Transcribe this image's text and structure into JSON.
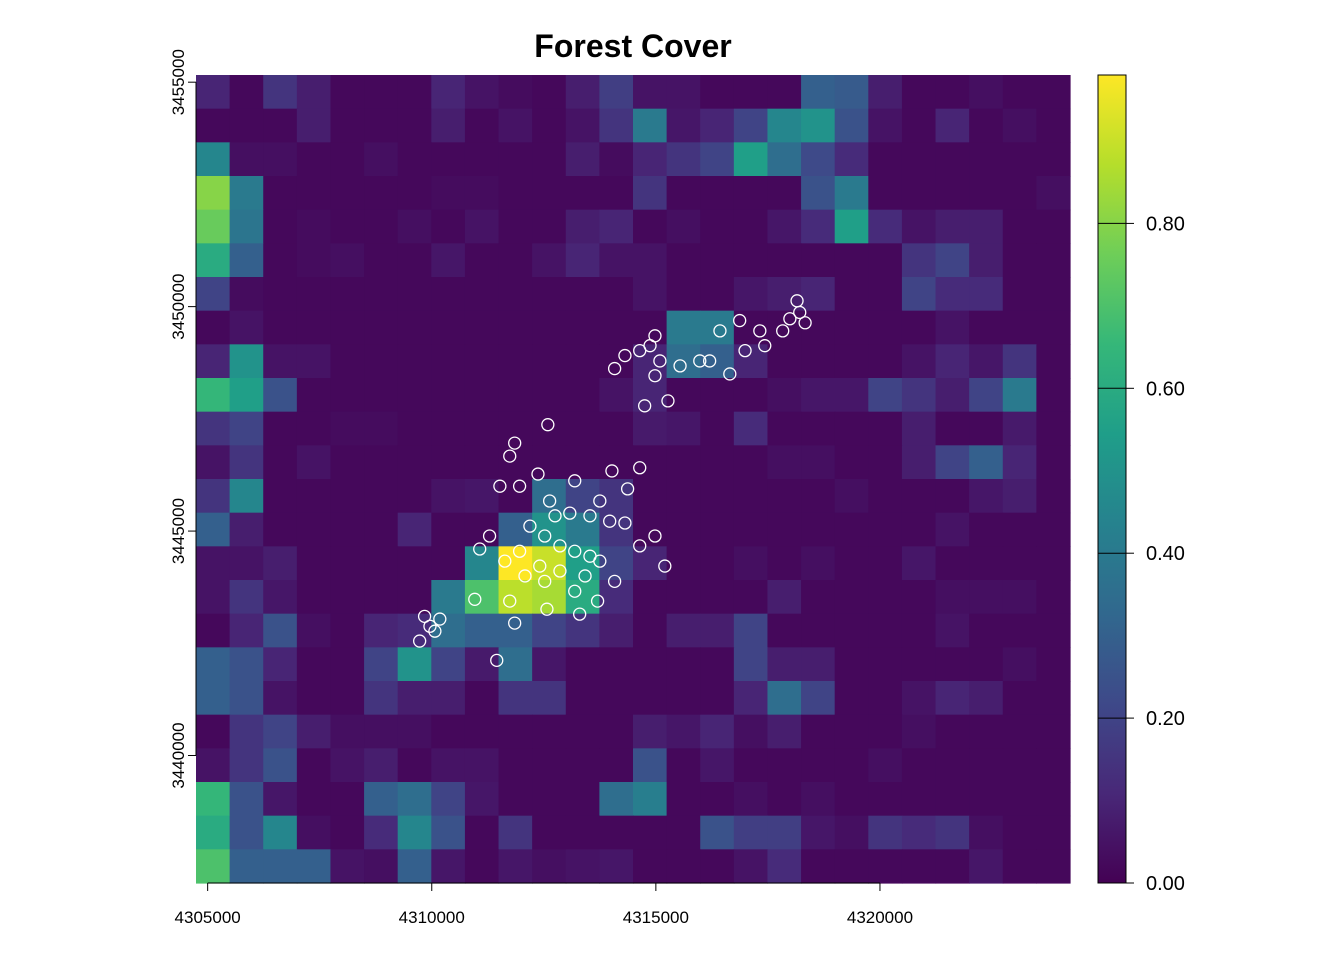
{
  "chart_data": {
    "type": "heatmap",
    "title": "Forest Cover",
    "colormap": "viridis",
    "xlim": [
      4304740,
      4324240
    ],
    "ylim": [
      3437160,
      3455160
    ],
    "xticks": [
      4305000,
      4310000,
      4315000,
      4320000
    ],
    "yticks": [
      3440000,
      3445000,
      3450000,
      3455000
    ],
    "zlim": [
      0,
      0.98
    ],
    "zticks": [
      {
        "value": 0,
        "label": "0.00"
      },
      {
        "value": 0.2,
        "label": "0.20"
      },
      {
        "value": 0.4,
        "label": "0.40"
      },
      {
        "value": 0.6,
        "label": "0.60"
      },
      {
        "value": 0.8,
        "label": "0.80"
      }
    ],
    "z": [
      [
        0.1,
        0.02,
        0.15,
        0.08,
        0.02,
        0.02,
        0.02,
        0.1,
        0.05,
        0.03,
        0.02,
        0.08,
        0.18,
        0.05,
        0.05,
        0.02,
        0.02,
        0.02,
        0.3,
        0.28,
        0.08,
        0.02,
        0.02,
        0.04,
        0.02,
        0.02
      ],
      [
        0.02,
        0.02,
        0.02,
        0.08,
        0.02,
        0.02,
        0.02,
        0.08,
        0.02,
        0.05,
        0.02,
        0.05,
        0.15,
        0.4,
        0.06,
        0.1,
        0.2,
        0.45,
        0.5,
        0.25,
        0.05,
        0.02,
        0.1,
        0.02,
        0.04,
        0.02
      ],
      [
        0.45,
        0.04,
        0.04,
        0.02,
        0.02,
        0.04,
        0.02,
        0.02,
        0.02,
        0.02,
        0.02,
        0.08,
        0.03,
        0.1,
        0.15,
        0.2,
        0.55,
        0.35,
        0.22,
        0.12,
        0.02,
        0.02,
        0.02,
        0.02,
        0.02,
        0.02
      ],
      [
        0.8,
        0.4,
        0.02,
        0.02,
        0.02,
        0.02,
        0.02,
        0.03,
        0.03,
        0.02,
        0.02,
        0.02,
        0.02,
        0.15,
        0.02,
        0.02,
        0.02,
        0.02,
        0.25,
        0.4,
        0.02,
        0.02,
        0.02,
        0.02,
        0.02,
        0.04
      ],
      [
        0.75,
        0.38,
        0.02,
        0.03,
        0.02,
        0.02,
        0.04,
        0.02,
        0.05,
        0.02,
        0.02,
        0.08,
        0.1,
        0.02,
        0.04,
        0.02,
        0.02,
        0.06,
        0.12,
        0.55,
        0.12,
        0.05,
        0.08,
        0.08,
        0.02,
        0.02
      ],
      [
        0.6,
        0.3,
        0.02,
        0.03,
        0.04,
        0.02,
        0.02,
        0.06,
        0.02,
        0.02,
        0.05,
        0.1,
        0.05,
        0.05,
        0.02,
        0.02,
        0.02,
        0.02,
        0.02,
        0.02,
        0.02,
        0.15,
        0.2,
        0.08,
        0.02,
        0.02
      ],
      [
        0.2,
        0.03,
        0.02,
        0.02,
        0.02,
        0.02,
        0.02,
        0.02,
        0.02,
        0.02,
        0.02,
        0.02,
        0.02,
        0.05,
        0.02,
        0.02,
        0.06,
        0.08,
        0.1,
        0.02,
        0.02,
        0.2,
        0.12,
        0.12,
        0.02,
        0.02
      ],
      [
        0.02,
        0.05,
        0.02,
        0.02,
        0.02,
        0.02,
        0.02,
        0.02,
        0.02,
        0.02,
        0.02,
        0.02,
        0.02,
        0.02,
        0.4,
        0.4,
        0.02,
        0.02,
        0.02,
        0.02,
        0.02,
        0.02,
        0.05,
        0.02,
        0.02,
        0.02
      ],
      [
        0.1,
        0.5,
        0.05,
        0.05,
        0.02,
        0.02,
        0.02,
        0.02,
        0.02,
        0.02,
        0.02,
        0.02,
        0.02,
        0.1,
        0.35,
        0.3,
        0.1,
        0.02,
        0.02,
        0.02,
        0.02,
        0.05,
        0.1,
        0.06,
        0.15,
        0.02
      ],
      [
        0.65,
        0.55,
        0.25,
        0.02,
        0.02,
        0.02,
        0.02,
        0.02,
        0.02,
        0.02,
        0.02,
        0.02,
        0.05,
        0.1,
        0.02,
        0.02,
        0.02,
        0.04,
        0.06,
        0.06,
        0.2,
        0.15,
        0.08,
        0.2,
        0.4,
        0.02
      ],
      [
        0.15,
        0.2,
        0.02,
        0.02,
        0.03,
        0.03,
        0.02,
        0.02,
        0.02,
        0.02,
        0.02,
        0.02,
        0.02,
        0.07,
        0.06,
        0.02,
        0.12,
        0.02,
        0.02,
        0.02,
        0.02,
        0.08,
        0.02,
        0.02,
        0.07,
        0.02
      ],
      [
        0.05,
        0.15,
        0.02,
        0.05,
        0.02,
        0.02,
        0.02,
        0.02,
        0.02,
        0.02,
        0.02,
        0.02,
        0.02,
        0.02,
        0.02,
        0.02,
        0.02,
        0.04,
        0.04,
        0.02,
        0.02,
        0.08,
        0.2,
        0.3,
        0.1,
        0.02
      ],
      [
        0.15,
        0.45,
        0.02,
        0.02,
        0.02,
        0.02,
        0.02,
        0.05,
        0.06,
        0.02,
        0.35,
        0.2,
        0.15,
        0.02,
        0.02,
        0.02,
        0.02,
        0.02,
        0.02,
        0.04,
        0.02,
        0.02,
        0.02,
        0.06,
        0.08,
        0.02
      ],
      [
        0.3,
        0.08,
        0.02,
        0.02,
        0.02,
        0.02,
        0.1,
        0.02,
        0.02,
        0.3,
        0.5,
        0.4,
        0.15,
        0.02,
        0.02,
        0.02,
        0.02,
        0.02,
        0.02,
        0.02,
        0.02,
        0.02,
        0.05,
        0.02,
        0.02,
        0.02
      ],
      [
        0.05,
        0.05,
        0.08,
        0.02,
        0.02,
        0.02,
        0.02,
        0.02,
        0.45,
        0.98,
        0.9,
        0.55,
        0.2,
        0.1,
        0.02,
        0.02,
        0.04,
        0.02,
        0.04,
        0.02,
        0.02,
        0.06,
        0.02,
        0.02,
        0.02,
        0.02
      ],
      [
        0.05,
        0.15,
        0.06,
        0.02,
        0.02,
        0.02,
        0.02,
        0.4,
        0.7,
        0.88,
        0.85,
        0.6,
        0.12,
        0.02,
        0.02,
        0.02,
        0.02,
        0.08,
        0.02,
        0.02,
        0.02,
        0.02,
        0.04,
        0.04,
        0.04,
        0.02
      ],
      [
        0.02,
        0.1,
        0.25,
        0.04,
        0.02,
        0.1,
        0.12,
        0.35,
        0.3,
        0.3,
        0.2,
        0.15,
        0.08,
        0.02,
        0.08,
        0.08,
        0.2,
        0.02,
        0.02,
        0.02,
        0.02,
        0.02,
        0.05,
        0.02,
        0.02,
        0.02
      ],
      [
        0.3,
        0.25,
        0.1,
        0.02,
        0.02,
        0.2,
        0.5,
        0.2,
        0.07,
        0.35,
        0.06,
        0.02,
        0.02,
        0.02,
        0.02,
        0.02,
        0.2,
        0.08,
        0.08,
        0.02,
        0.02,
        0.02,
        0.02,
        0.02,
        0.04,
        0.02
      ],
      [
        0.3,
        0.25,
        0.05,
        0.02,
        0.02,
        0.15,
        0.08,
        0.08,
        0.02,
        0.15,
        0.15,
        0.02,
        0.02,
        0.02,
        0.02,
        0.02,
        0.1,
        0.35,
        0.2,
        0.02,
        0.02,
        0.05,
        0.1,
        0.08,
        0.02,
        0.02
      ],
      [
        0.02,
        0.15,
        0.2,
        0.08,
        0.04,
        0.04,
        0.04,
        0.02,
        0.02,
        0.02,
        0.02,
        0.02,
        0.02,
        0.08,
        0.06,
        0.1,
        0.04,
        0.08,
        0.02,
        0.02,
        0.02,
        0.04,
        0.02,
        0.02,
        0.02,
        0.02
      ],
      [
        0.05,
        0.15,
        0.25,
        0.02,
        0.05,
        0.08,
        0.02,
        0.05,
        0.05,
        0.02,
        0.02,
        0.02,
        0.02,
        0.25,
        0.02,
        0.06,
        0.02,
        0.02,
        0.02,
        0.02,
        0.04,
        0.02,
        0.02,
        0.02,
        0.02,
        0.02
      ],
      [
        0.65,
        0.25,
        0.06,
        0.02,
        0.02,
        0.3,
        0.35,
        0.2,
        0.06,
        0.02,
        0.02,
        0.02,
        0.35,
        0.42,
        0.02,
        0.02,
        0.04,
        0.02,
        0.04,
        0.02,
        0.02,
        0.02,
        0.02,
        0.02,
        0.02,
        0.02
      ],
      [
        0.6,
        0.25,
        0.45,
        0.04,
        0.02,
        0.12,
        0.45,
        0.25,
        0.02,
        0.15,
        0.02,
        0.02,
        0.02,
        0.02,
        0.02,
        0.25,
        0.18,
        0.18,
        0.06,
        0.04,
        0.15,
        0.12,
        0.15,
        0.04,
        0.02,
        0.02
      ],
      [
        0.7,
        0.3,
        0.3,
        0.3,
        0.05,
        0.04,
        0.3,
        0.06,
        0.02,
        0.06,
        0.04,
        0.05,
        0.06,
        0.02,
        0.02,
        0.02,
        0.05,
        0.12,
        0.02,
        0.02,
        0.02,
        0.02,
        0.02,
        0.06,
        0.02,
        0.02
      ]
    ],
    "points": {
      "color": "#ffffff",
      "x": [
        4318150,
        4318210,
        4317990,
        4318330,
        4317830,
        4317320,
        4316870,
        4317430,
        4316990,
        4316430,
        4316200,
        4316650,
        4315980,
        4315540,
        4314980,
        4314870,
        4315090,
        4314640,
        4314310,
        4314080,
        4314980,
        4315270,
        4314750,
        4312590,
        4311850,
        4311740,
        4311520,
        4311960,
        4312370,
        4313190,
        4314020,
        4314640,
        4314370,
        4312630,
        4312750,
        4313080,
        4313530,
        4313970,
        4314310,
        4313750,
        4312190,
        4312520,
        4312860,
        4313190,
        4313530,
        4313750,
        4311960,
        4311630,
        4312080,
        4312410,
        4311290,
        4311070,
        4310960,
        4311740,
        4311850,
        4312520,
        4313190,
        4313300,
        4313700,
        4314080,
        4314980,
        4315200,
        4314640,
        4311450,
        4309840,
        4309960,
        4310070,
        4309730,
        4310180,
        4312570,
        4312860,
        4313420
      ],
      "y": [
        3450130,
        3449870,
        3449730,
        3449640,
        3449460,
        3449460,
        3449690,
        3449130,
        3449020,
        3449460,
        3448790,
        3448500,
        3448790,
        3448680,
        3449350,
        3449130,
        3448790,
        3449020,
        3448910,
        3448620,
        3448460,
        3447900,
        3447790,
        3447370,
        3446960,
        3446670,
        3446000,
        3446000,
        3446270,
        3446120,
        3446340,
        3446410,
        3445940,
        3445670,
        3445340,
        3445400,
        3445340,
        3445220,
        3445180,
        3445670,
        3445110,
        3444890,
        3444670,
        3444550,
        3444440,
        3444330,
        3444550,
        3444330,
        3444000,
        3444220,
        3444890,
        3444600,
        3443480,
        3443440,
        3442950,
        3443880,
        3443660,
        3443150,
        3443440,
        3443880,
        3444890,
        3444220,
        3444670,
        3442120,
        3443100,
        3442880,
        3442770,
        3442550,
        3443040,
        3443260,
        3444110,
        3444000
      ]
    }
  }
}
